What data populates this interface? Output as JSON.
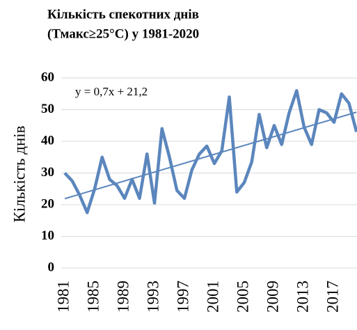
{
  "chart_data": {
    "type": "line",
    "title": [
      "Кількість  спекотних днів",
      "(Тмакс≥25°C) у 1981-2020"
    ],
    "y_label": "Кількість днів",
    "categories": [
      "1981",
      null,
      null,
      null,
      "1985",
      null,
      null,
      null,
      "1989",
      null,
      null,
      null,
      "1993",
      null,
      null,
      null,
      "1997",
      null,
      null,
      null,
      "2001",
      null,
      null,
      null,
      "2005",
      null,
      null,
      null,
      "2009",
      null,
      null,
      null,
      "2013",
      null,
      null,
      null,
      "2017",
      null,
      null,
      null
    ],
    "series": [
      {
        "color": "#5b86bd",
        "values": [
          30,
          27.5,
          23,
          17.5,
          25,
          35,
          28,
          26,
          22,
          28,
          22,
          36,
          20.5,
          44,
          35,
          24.5,
          22,
          31,
          36,
          38.5,
          33,
          37,
          54,
          24,
          27,
          33.5,
          48.5,
          38,
          45,
          39,
          49,
          56,
          44.5,
          39,
          50,
          49,
          46,
          55,
          52,
          43
        ]
      }
    ],
    "trendline": {
      "label": "y = 0,7x + 21,2",
      "slope": 0.7,
      "intercept": 21.2
    },
    "ylim": [
      0,
      60
    ],
    "yticks": [
      0,
      10,
      20,
      30,
      40,
      50,
      60
    ],
    "grid": true
  }
}
